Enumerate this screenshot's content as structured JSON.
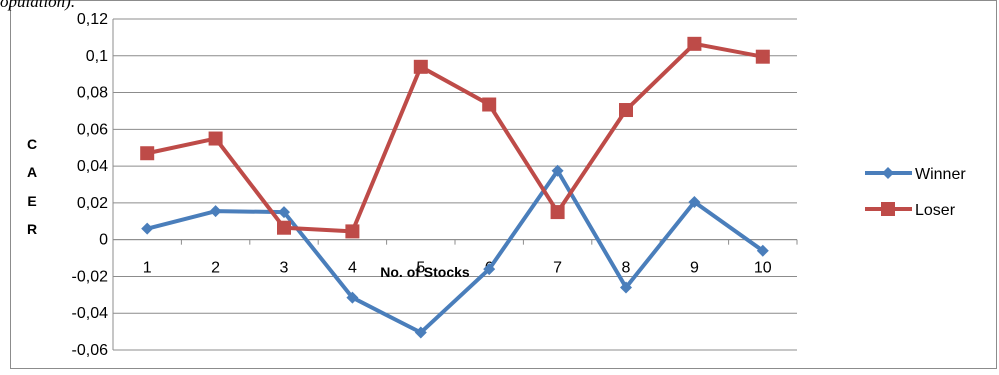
{
  "header_fragment": "opulation).",
  "chart_data": {
    "type": "line",
    "title": "",
    "xlabel": "No. of Stocks",
    "ylabel_letters": [
      "C",
      "A",
      "E",
      "R"
    ],
    "categories": [
      "1",
      "2",
      "3",
      "4",
      "5",
      "6",
      "7",
      "8",
      "9",
      "10"
    ],
    "ylim": [
      -0.06,
      0.12
    ],
    "yticks": [
      -0.06,
      -0.04,
      -0.02,
      0,
      0.02,
      0.04,
      0.06,
      0.08,
      0.1,
      0.12
    ],
    "ytick_labels": [
      "-0,06",
      "-0,04",
      "-0,02",
      "0",
      "0,02",
      "0,04",
      "0,06",
      "0,08",
      "0,1",
      "0,12"
    ],
    "grid": true,
    "legend_position": "right",
    "series": [
      {
        "name": "Winner",
        "color": "#4a7ebb",
        "marker": "diamond",
        "values": [
          0.006,
          0.0155,
          0.015,
          -0.0315,
          -0.0505,
          -0.016,
          0.0375,
          -0.026,
          0.0205,
          -0.006
        ]
      },
      {
        "name": "Loser",
        "color": "#be4b48",
        "marker": "square",
        "values": [
          0.047,
          0.055,
          0.0065,
          0.0045,
          0.094,
          0.0735,
          0.015,
          0.0705,
          0.1065,
          0.0995
        ]
      }
    ]
  }
}
